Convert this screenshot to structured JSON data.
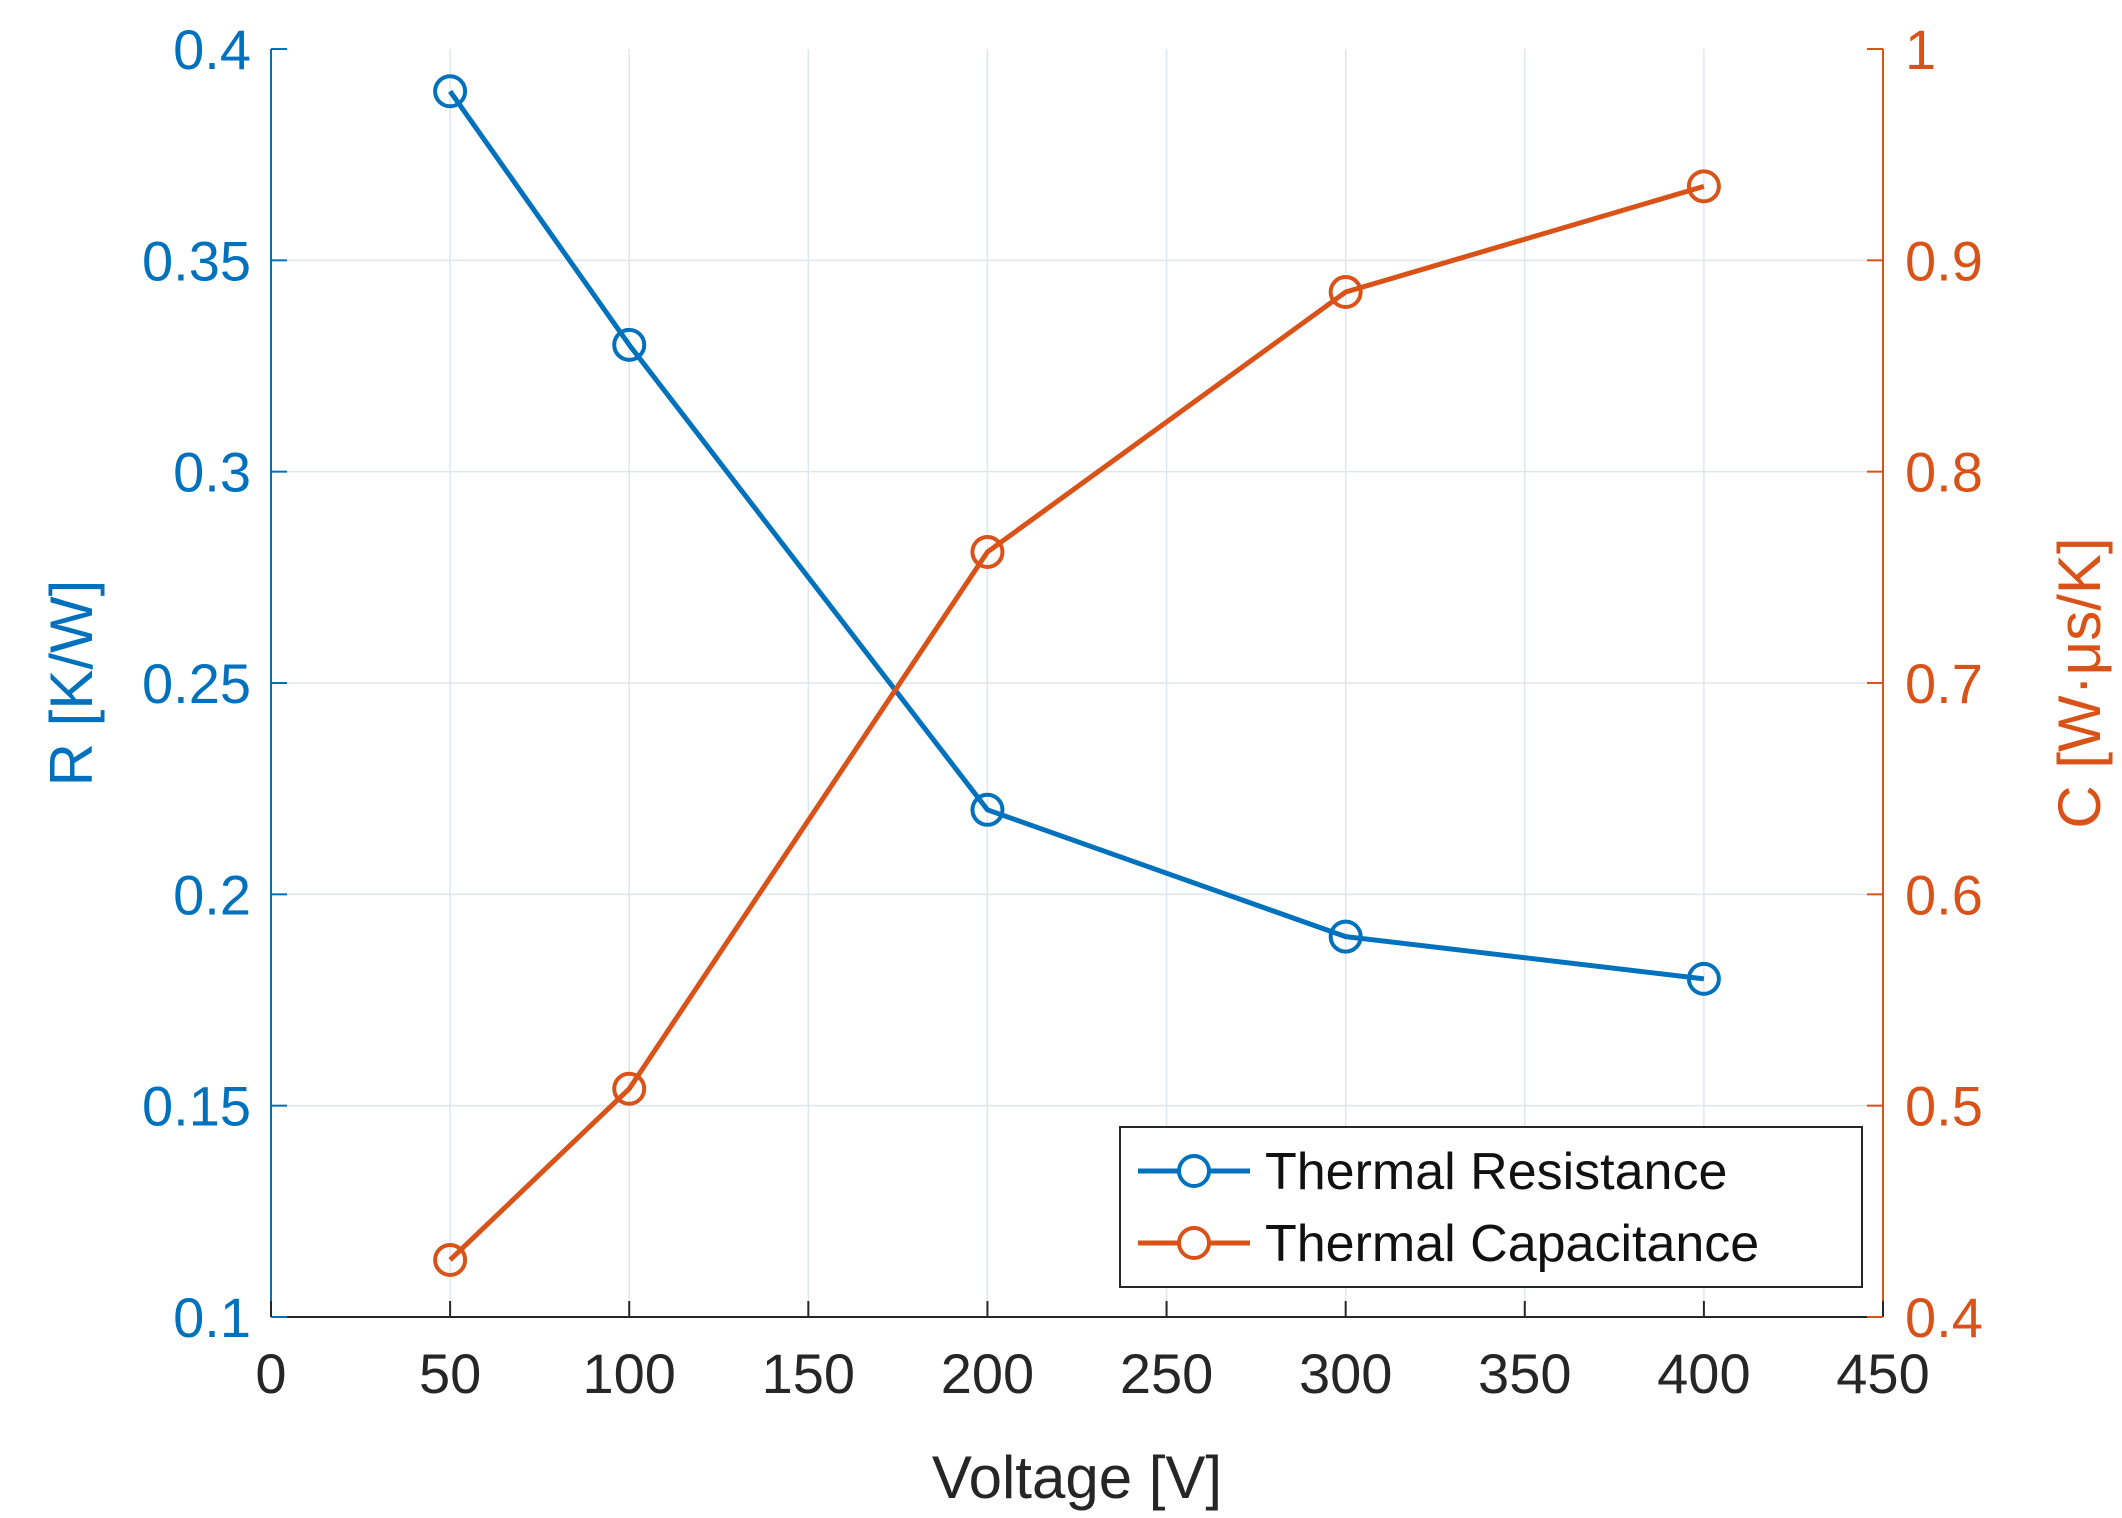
{
  "chart_data": {
    "type": "line",
    "title": "",
    "xlabel": "Voltage [V]",
    "ylabel_left": "R [K/W]",
    "ylabel_right": "C [W·μs/K]",
    "xlim": [
      0,
      450
    ],
    "ylim_left": [
      0.1,
      0.4
    ],
    "ylim_right": [
      0.4,
      1.0
    ],
    "xticks": [
      0,
      50,
      100,
      150,
      200,
      250,
      300,
      350,
      400,
      450
    ],
    "xtick_labels": [
      "0",
      "50",
      "100",
      "150",
      "200",
      "250",
      "300",
      "350",
      "400",
      "450"
    ],
    "yticks_left": [
      0.1,
      0.15,
      0.2,
      0.25,
      0.3,
      0.35,
      0.4
    ],
    "ytick_labels_left": [
      "0.1",
      "0.15",
      "0.2",
      "0.25",
      "0.3",
      "0.35",
      "0.4"
    ],
    "yticks_right": [
      0.4,
      0.5,
      0.6,
      0.7,
      0.8,
      0.9,
      1.0
    ],
    "ytick_labels_right": [
      "0.4",
      "0.5",
      "0.6",
      "0.7",
      "0.8",
      "0.9",
      "1"
    ],
    "grid": true,
    "legend_position": "bottom-right",
    "x": [
      50,
      100,
      200,
      300,
      400
    ],
    "series": [
      {
        "name": "Thermal Resistance",
        "axis": "left",
        "color": "#0072bd",
        "marker": "circle",
        "values": [
          0.39,
          0.33,
          0.22,
          0.19,
          0.18
        ]
      },
      {
        "name": "Thermal Capacitance",
        "axis": "right",
        "color": "#d95319",
        "marker": "circle",
        "values": [
          0.427,
          0.508,
          0.762,
          0.885,
          0.935
        ]
      }
    ]
  },
  "colors": {
    "axis_dark": "#262626",
    "left_axis": "#0072bd",
    "right_axis": "#d95319"
  }
}
